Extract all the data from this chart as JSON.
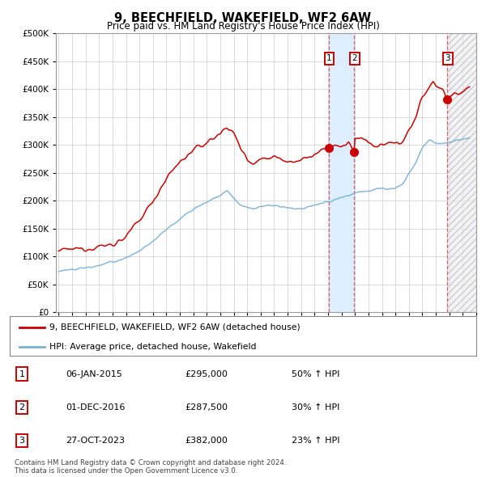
{
  "title": "9, BEECHFIELD, WAKEFIELD, WF2 6AW",
  "subtitle": "Price paid vs. HM Land Registry's House Price Index (HPI)",
  "sale_points": [
    {
      "date_num": 2015.04,
      "price": 295000,
      "label": "1"
    },
    {
      "date_num": 2016.92,
      "price": 287500,
      "label": "2"
    },
    {
      "date_num": 2023.83,
      "price": 382000,
      "label": "3"
    }
  ],
  "table_rows": [
    {
      "label": "1",
      "date": "06-JAN-2015",
      "price": "£295,000",
      "hpi": "50% ↑ HPI"
    },
    {
      "label": "2",
      "date": "01-DEC-2016",
      "price": "£287,500",
      "hpi": "30% ↑ HPI"
    },
    {
      "label": "3",
      "date": "27-OCT-2023",
      "price": "£382,000",
      "hpi": "23% ↑ HPI"
    }
  ],
  "legend_line1": "9, BEECHFIELD, WAKEFIELD, WF2 6AW (detached house)",
  "legend_line2": "HPI: Average price, detached house, Wakefield",
  "footer": "Contains HM Land Registry data © Crown copyright and database right 2024.\nThis data is licensed under the Open Government Licence v3.0.",
  "red_color": "#cc0000",
  "blue_color": "#7ab0d4",
  "shaded_color": "#ddeeff",
  "ylim": [
    0,
    500000
  ],
  "yticks": [
    0,
    50000,
    100000,
    150000,
    200000,
    250000,
    300000,
    350000,
    400000,
    450000,
    500000
  ],
  "xstart_year": 1995,
  "xend_year": 2026,
  "background_color": "#ffffff",
  "grid_color": "#cccccc",
  "red_anchors_x": [
    1995.0,
    1996.0,
    1997.0,
    1998.0,
    1999.0,
    2000.0,
    2001.0,
    2002.0,
    2003.0,
    2004.0,
    2005.0,
    2006.0,
    2007.0,
    2007.5,
    2008.0,
    2008.5,
    2009.0,
    2009.5,
    2010.0,
    2011.0,
    2012.0,
    2013.0,
    2013.5,
    2014.0,
    2014.5,
    2015.04,
    2015.5,
    2016.0,
    2016.5,
    2016.92,
    2017.0,
    2017.5,
    2018.0,
    2018.5,
    2019.0,
    2019.5,
    2020.0,
    2020.5,
    2021.0,
    2021.5,
    2022.0,
    2022.5,
    2022.8,
    2023.0,
    2023.5,
    2023.83,
    2024.0,
    2024.5,
    2025.0,
    2025.5
  ],
  "red_anchors_y": [
    110000,
    113000,
    115000,
    118000,
    122000,
    135000,
    165000,
    200000,
    240000,
    270000,
    290000,
    305000,
    320000,
    335000,
    320000,
    295000,
    275000,
    268000,
    275000,
    280000,
    272000,
    272000,
    278000,
    282000,
    288000,
    295000,
    300000,
    295000,
    305000,
    287500,
    310000,
    315000,
    305000,
    295000,
    298000,
    302000,
    302000,
    308000,
    325000,
    350000,
    385000,
    405000,
    415000,
    408000,
    400000,
    382000,
    388000,
    392000,
    395000,
    398000
  ],
  "blue_anchors_x": [
    1995.0,
    1996.0,
    1997.0,
    1998.0,
    1999.0,
    2000.0,
    2001.0,
    2002.0,
    2003.0,
    2004.0,
    2005.0,
    2006.0,
    2007.0,
    2007.5,
    2008.0,
    2008.5,
    2009.0,
    2009.5,
    2010.0,
    2011.0,
    2012.0,
    2013.0,
    2014.0,
    2015.0,
    2016.0,
    2017.0,
    2018.0,
    2019.0,
    2020.0,
    2020.5,
    2021.0,
    2021.5,
    2022.0,
    2022.5,
    2023.0,
    2023.5,
    2024.0,
    2024.5,
    2025.0,
    2025.5
  ],
  "blue_anchors_y": [
    75000,
    77000,
    80000,
    84000,
    90000,
    98000,
    110000,
    128000,
    148000,
    168000,
    185000,
    198000,
    210000,
    218000,
    205000,
    192000,
    188000,
    186000,
    190000,
    192000,
    186000,
    186000,
    192000,
    198000,
    205000,
    215000,
    218000,
    222000,
    222000,
    228000,
    248000,
    270000,
    295000,
    308000,
    305000,
    303000,
    306000,
    308000,
    310000,
    312000
  ]
}
